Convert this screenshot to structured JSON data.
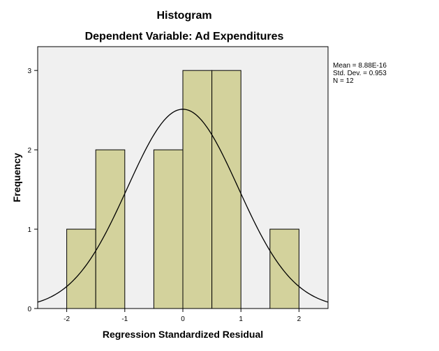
{
  "chart_data": {
    "type": "bar",
    "title": "Histogram",
    "subtitle": "Dependent Variable: Ad Expenditures",
    "xlabel": "Regression Standardized Residual",
    "ylabel": "Frequency",
    "xlim": [
      -2.5,
      2.5
    ],
    "ylim": [
      0,
      3.3
    ],
    "xticks": [
      "-2",
      "-1",
      "0",
      "1",
      "2"
    ],
    "yticks": [
      "0",
      "1",
      "2",
      "3"
    ],
    "bins": [
      {
        "start": -2.0,
        "end": -1.5,
        "value": 1
      },
      {
        "start": -1.5,
        "end": -1.0,
        "value": 2
      },
      {
        "start": -0.5,
        "end": 0.0,
        "value": 2
      },
      {
        "start": 0.0,
        "end": 0.5,
        "value": 3
      },
      {
        "start": 0.5,
        "end": 1.0,
        "value": 3
      },
      {
        "start": 1.5,
        "end": 2.0,
        "value": 1
      }
    ],
    "normal_curve": {
      "mean": 0,
      "sd": 0.953,
      "n": 12,
      "bin_width": 0.5
    },
    "stats_lines": [
      "Mean = 8.88E-16",
      "Std. Dev. = 0.953",
      "N = 12"
    ],
    "grid": false,
    "legend_position": "top-right",
    "colors": {
      "bar_fill": "#d3d29c",
      "bar_stroke": "#000000",
      "plot_bg": "#f0f0f0",
      "curve": "#000000"
    }
  }
}
